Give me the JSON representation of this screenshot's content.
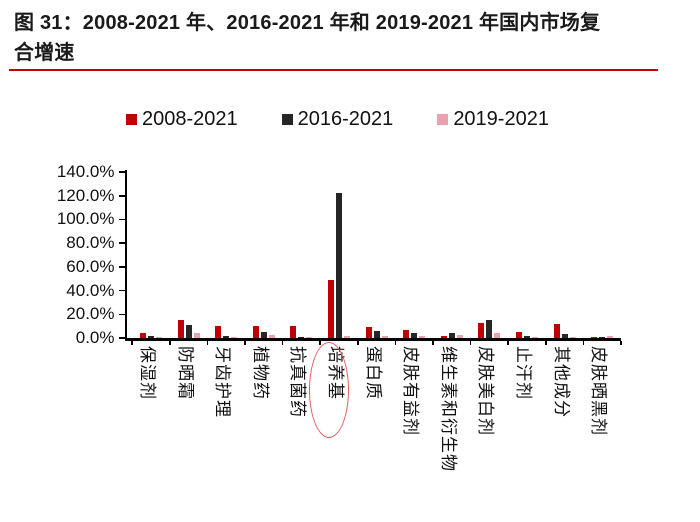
{
  "title": {
    "line1": "图 31：2008-2021 年、2016-2021 年和 2019-2021 年国内市场复",
    "line2": "合增速"
  },
  "accent_rule_color": "#C00000",
  "chart_data": {
    "type": "bar",
    "title": "图 31：2008-2021 年、2016-2021 年和 2019-2021 年国内市场复合增速",
    "xlabel": "",
    "ylabel": "",
    "ylim": [
      0,
      140
    ],
    "y_tick_step": 20,
    "y_tick_labels": [
      "0.0%",
      "20.0%",
      "40.0%",
      "60.0%",
      "80.0%",
      "100.0%",
      "120.0%",
      "140.0%"
    ],
    "grid": false,
    "legend_position": "top",
    "categories": [
      "保湿剂",
      "防晒霜",
      "牙齿护理",
      "植物药",
      "抗真菌药",
      "培养基",
      "蛋白质",
      "皮肤有益剂",
      "维生素和衍生物",
      "皮肤美白剂",
      "止汗剂",
      "其他成分",
      "皮肤晒黑剂"
    ],
    "series": [
      {
        "name": "2008-2021",
        "color": "#C00000",
        "values": [
          4.2,
          15,
          10,
          10.5,
          10,
          49,
          9.5,
          6.5,
          1.5,
          13,
          5,
          12,
          0.5
        ]
      },
      {
        "name": "2016-2021",
        "color": "#262626",
        "values": [
          1.5,
          11,
          2,
          5,
          1,
          122.5,
          5.5,
          4.5,
          4.5,
          15.5,
          1.5,
          3.5,
          0.5
        ]
      },
      {
        "name": "2019-2021",
        "color": "#E9A3AE",
        "values": [
          1,
          4.5,
          1,
          2.5,
          0.5,
          2,
          2,
          2,
          2.5,
          4,
          0.5,
          1,
          1.5
        ]
      }
    ],
    "annotations": [
      {
        "type": "ellipse",
        "target_category": "培养基",
        "target_category_index": 5,
        "note": "red hand-drawn circle around x-axis label"
      }
    ]
  }
}
